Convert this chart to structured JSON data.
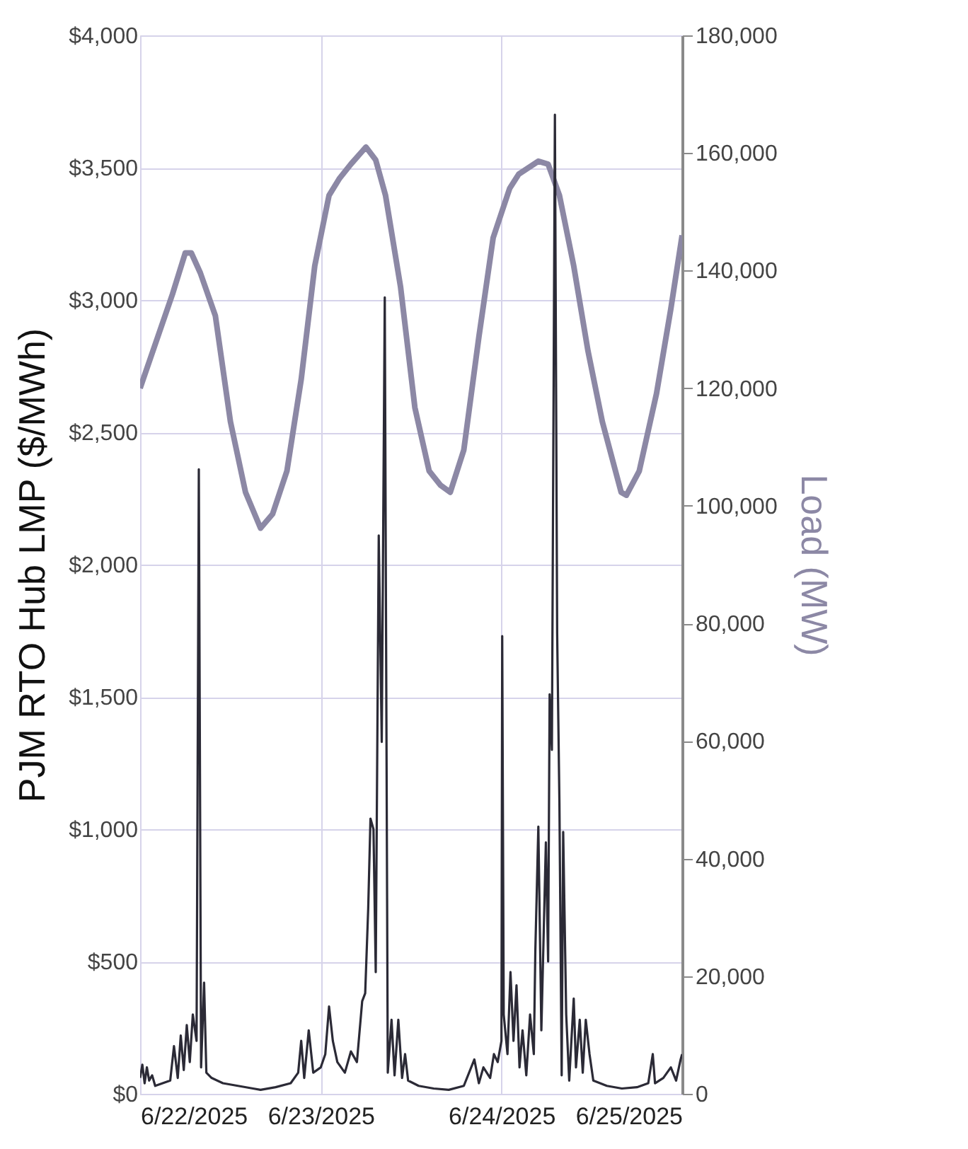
{
  "chart_data": {
    "type": "line",
    "ylabel": "PJM RTO Hub LMP ($/MWh)",
    "y2label": "Load (MW)",
    "xlim": [
      "2025-06-22T00:00",
      "2025-06-25T00:00"
    ],
    "xticks": [
      {
        "value": "2025-06-22T00:00",
        "label": "6/22/2025"
      },
      {
        "value": "2025-06-23T00:00",
        "label": "6/23/2025"
      },
      {
        "value": "2025-06-24T00:00",
        "label": "6/24/2025"
      },
      {
        "value": "2025-06-25T00:00",
        "label": "6/25/2025"
      }
    ],
    "ylim": [
      0,
      4000
    ],
    "yticks": [
      {
        "value": 0,
        "label": "$0"
      },
      {
        "value": 500,
        "label": "$500"
      },
      {
        "value": 1000,
        "label": "$1,000"
      },
      {
        "value": 1500,
        "label": "$1,500"
      },
      {
        "value": 2000,
        "label": "$2,000"
      },
      {
        "value": 2500,
        "label": "$2,500"
      },
      {
        "value": 3000,
        "label": "$3,000"
      },
      {
        "value": 3500,
        "label": "$3,500"
      },
      {
        "value": 4000,
        "label": "$4,000"
      }
    ],
    "y2lim": [
      0,
      180000
    ],
    "y2ticks": [
      {
        "value": 0,
        "label": "0"
      },
      {
        "value": 20000,
        "label": "20,000"
      },
      {
        "value": 40000,
        "label": "40,000"
      },
      {
        "value": 60000,
        "label": "60,000"
      },
      {
        "value": 80000,
        "label": "80,000"
      },
      {
        "value": 100000,
        "label": "100,000"
      },
      {
        "value": 120000,
        "label": "120,000"
      },
      {
        "value": 140000,
        "label": "140,000"
      },
      {
        "value": 160000,
        "label": "160,000"
      },
      {
        "value": 180000,
        "label": "180,000"
      }
    ],
    "grid": true,
    "marker": "none",
    "line_style": "solid",
    "series": [
      {
        "axis": "y2",
        "color": "#8c88a5",
        "x": [
          "2025-06-22T00:00",
          "2025-06-22T04:18",
          "2025-06-22T06:00",
          "2025-06-22T06:48",
          "2025-06-22T08:00",
          "2025-06-22T10:00",
          "2025-06-22T12:00",
          "2025-06-22T14:00",
          "2025-06-22T16:00",
          "2025-06-22T17:36",
          "2025-06-22T19:30",
          "2025-06-22T21:24",
          "2025-06-22T23:12",
          "2025-06-23T01:06",
          "2025-06-23T02:30",
          "2025-06-23T04:00",
          "2025-06-23T06:00",
          "2025-06-23T07:18",
          "2025-06-23T08:36",
          "2025-06-23T10:36",
          "2025-06-23T12:30",
          "2025-06-23T14:24",
          "2025-06-23T15:54",
          "2025-06-23T17:12",
          "2025-06-23T19:00",
          "2025-06-23T21:00",
          "2025-06-23T22:54",
          "2025-06-24T01:06",
          "2025-06-24T02:18",
          "2025-06-24T04:54",
          "2025-06-24T06:12",
          "2025-06-24T07:42",
          "2025-06-24T09:36",
          "2025-06-24T11:30",
          "2025-06-24T13:24",
          "2025-06-24T15:54",
          "2025-06-24T16:36",
          "2025-06-24T18:18",
          "2025-06-24T20:36",
          "2025-06-24T22:30",
          "2025-06-25T00:00"
        ],
        "values": [
          120000,
          136000,
          143000,
          143000,
          139600,
          132300,
          114300,
          102300,
          96200,
          98600,
          105900,
          121500,
          140800,
          152800,
          155700,
          158100,
          161000,
          158800,
          152800,
          137200,
          116700,
          105900,
          103500,
          102300,
          109500,
          128700,
          145600,
          154000,
          156400,
          158600,
          158100,
          152800,
          140800,
          126300,
          114300,
          102300,
          101800,
          105900,
          119100,
          133500,
          146000
        ]
      },
      {
        "axis": "y",
        "color": "#2b2a36",
        "x": [
          "2025-06-22T00:00",
          "2025-06-22T00:18",
          "2025-06-22T00:36",
          "2025-06-22T00:54",
          "2025-06-22T01:12",
          "2025-06-22T01:36",
          "2025-06-22T02:00",
          "2025-06-22T03:00",
          "2025-06-22T04:00",
          "2025-06-22T04:30",
          "2025-06-22T05:00",
          "2025-06-22T05:24",
          "2025-06-22T05:48",
          "2025-06-22T06:12",
          "2025-06-22T06:36",
          "2025-06-22T07:00",
          "2025-06-22T07:30",
          "2025-06-22T07:48",
          "2025-06-22T08:06",
          "2025-06-22T08:30",
          "2025-06-22T08:48",
          "2025-06-22T09:30",
          "2025-06-22T11:00",
          "2025-06-22T13:00",
          "2025-06-22T15:00",
          "2025-06-22T16:00",
          "2025-06-22T18:00",
          "2025-06-22T20:00",
          "2025-06-22T21:00",
          "2025-06-22T21:24",
          "2025-06-22T21:48",
          "2025-06-22T22:24",
          "2025-06-22T23:00",
          "2025-06-23T00:00",
          "2025-06-23T00:36",
          "2025-06-23T01:06",
          "2025-06-23T01:36",
          "2025-06-23T02:12",
          "2025-06-23T03:12",
          "2025-06-23T04:00",
          "2025-06-23T04:48",
          "2025-06-23T05:30",
          "2025-06-23T05:54",
          "2025-06-23T06:18",
          "2025-06-23T06:36",
          "2025-06-23T07:00",
          "2025-06-23T07:18",
          "2025-06-23T07:42",
          "2025-06-23T08:06",
          "2025-06-23T08:30",
          "2025-06-23T08:54",
          "2025-06-23T09:24",
          "2025-06-23T09:48",
          "2025-06-23T10:18",
          "2025-06-23T10:48",
          "2025-06-23T11:12",
          "2025-06-23T11:36",
          "2025-06-23T13:00",
          "2025-06-23T15:00",
          "2025-06-23T17:00",
          "2025-06-23T19:00",
          "2025-06-23T20:24",
          "2025-06-23T21:00",
          "2025-06-23T21:36",
          "2025-06-23T22:30",
          "2025-06-23T23:00",
          "2025-06-23T23:30",
          "2025-06-24T00:00",
          "2025-06-24T00:06",
          "2025-06-24T00:18",
          "2025-06-24T00:48",
          "2025-06-24T01:12",
          "2025-06-24T01:36",
          "2025-06-24T02:00",
          "2025-06-24T02:24",
          "2025-06-24T02:48",
          "2025-06-24T03:18",
          "2025-06-24T03:48",
          "2025-06-24T04:18",
          "2025-06-24T04:30",
          "2025-06-24T04:54",
          "2025-06-24T05:18",
          "2025-06-24T05:54",
          "2025-06-24T06:12",
          "2025-06-24T06:24",
          "2025-06-24T06:42",
          "2025-06-24T07:06",
          "2025-06-24T07:24",
          "2025-06-24T07:42",
          "2025-06-24T08:00",
          "2025-06-24T08:12",
          "2025-06-24T08:36",
          "2025-06-24T09:00",
          "2025-06-24T09:36",
          "2025-06-24T09:54",
          "2025-06-24T10:24",
          "2025-06-24T10:48",
          "2025-06-24T11:12",
          "2025-06-24T11:42",
          "2025-06-24T12:12",
          "2025-06-24T14:00",
          "2025-06-24T16:00",
          "2025-06-24T18:00",
          "2025-06-24T19:30",
          "2025-06-24T20:06",
          "2025-06-24T20:24",
          "2025-06-24T21:30",
          "2025-06-24T22:30",
          "2025-06-24T23:12",
          "2025-06-24T23:48",
          "2025-06-25T00:00"
        ],
        "values": [
          60,
          110,
          40,
          100,
          50,
          70,
          30,
          40,
          50,
          180,
          60,
          220,
          90,
          260,
          120,
          300,
          200,
          2360,
          100,
          420,
          80,
          60,
          40,
          30,
          20,
          15,
          25,
          40,
          80,
          200,
          60,
          240,
          80,
          100,
          150,
          330,
          200,
          120,
          80,
          160,
          120,
          350,
          380,
          700,
          1040,
          1000,
          460,
          2110,
          1330,
          3010,
          80,
          280,
          70,
          280,
          60,
          150,
          50,
          30,
          20,
          15,
          30,
          130,
          40,
          100,
          60,
          150,
          120,
          200,
          1730,
          300,
          150,
          460,
          200,
          410,
          100,
          240,
          70,
          300,
          150,
          540,
          1010,
          240,
          950,
          500,
          1510,
          1300,
          3700,
          1740,
          1100,
          70,
          990,
          300,
          50,
          360,
          100,
          280,
          80,
          280,
          150,
          50,
          30,
          20,
          25,
          40,
          150,
          40,
          60,
          100,
          50,
          130,
          150
        ]
      }
    ]
  }
}
